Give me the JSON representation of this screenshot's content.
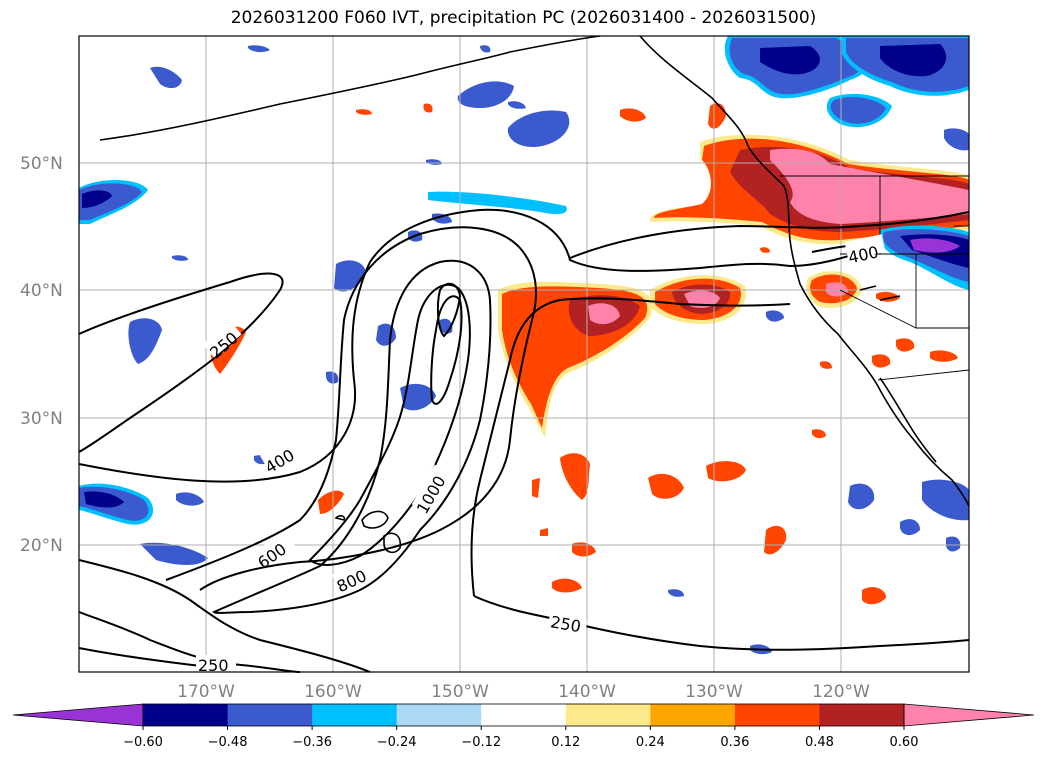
{
  "title": "2026031200 F060 IVT, precipitation PC (2026031400 - 2026031500)",
  "latitude_labels": [
    "50°N",
    "40°N",
    "30°N",
    "20°N"
  ],
  "longitude_labels": [
    "170°W",
    "160°W",
    "150°W",
    "140°W",
    "130°W",
    "120°W"
  ],
  "ivt_contour_labels": [
    "250",
    "400",
    "600",
    "800",
    "1000",
    "250",
    "400",
    "250"
  ],
  "colorbar": {
    "tick_labels": [
      "−0.60",
      "−0.48",
      "−0.36",
      "−0.24",
      "−0.12",
      "0.12",
      "0.24",
      "0.36",
      "0.48",
      "0.60"
    ],
    "colors": [
      "#9a33d6",
      "#00008b",
      "#3a5acd",
      "#00bfff",
      "#add8f5",
      "#ffffff",
      "#fce98c",
      "#ffa500",
      "#ff4500",
      "#b22222",
      "#ff82ab",
      "#ff82ab"
    ]
  },
  "colors": {
    "positive_low": "#fce98c",
    "positive_mid": "#ffa500",
    "positive_high": "#ff4500",
    "positive_higher": "#b22222",
    "positive_max": "#ff82ab",
    "negative_low": "#add8f5",
    "negative_mid": "#00bfff",
    "negative_high": "#3a5acd",
    "negative_higher": "#00008b",
    "negative_max": "#9a33d6",
    "gridline": "#b0b0b0",
    "label": "#808080"
  }
}
